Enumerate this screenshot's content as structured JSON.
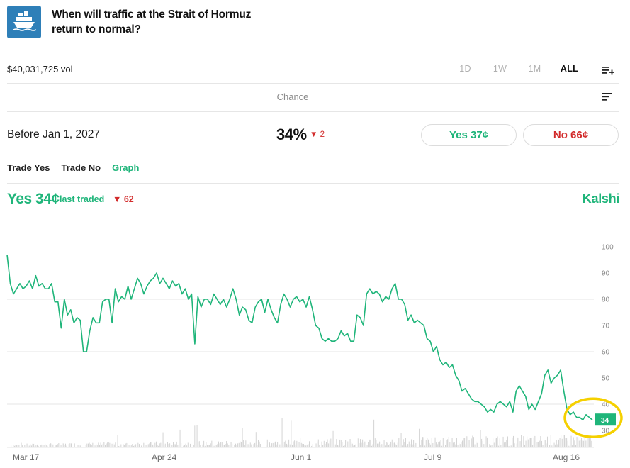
{
  "header": {
    "title": "When will traffic at the Strait of Hormuz return to normal?",
    "logo_icon": "ship-icon",
    "logo_color": "#2e7fb8"
  },
  "toolbar": {
    "volume": "$40,031,725 vol",
    "ranges": [
      "1D",
      "1W",
      "1M",
      "ALL"
    ],
    "active_range": "ALL",
    "list_add_icon": "playlist-add-icon"
  },
  "chance_label": "Chance",
  "outcome": {
    "label": "Before Jan 1, 2027",
    "chance": "34%",
    "change": "2",
    "yes_button": "Yes 37¢",
    "no_button": "No 66¢"
  },
  "tabs": [
    "Trade Yes",
    "Trade No",
    "Graph"
  ],
  "active_tab": "Graph",
  "price_header": {
    "yes_price": "Yes 34¢",
    "last_traded_label": "last traded",
    "traded_change": "62",
    "brand": "Kalshi"
  },
  "colors": {
    "accent": "#1fb57a",
    "negative": "#d22b2b",
    "highlight_ring": "#f5d000"
  },
  "chart_data": {
    "type": "line",
    "x_labels": [
      "Mar 17",
      "Apr 24",
      "Jun 1",
      "Jul 9",
      "Aug 16"
    ],
    "y_ticks": [
      100,
      90,
      80,
      70,
      60,
      50,
      40,
      30
    ],
    "ylim": [
      28,
      100
    ],
    "current_value": "34",
    "series": [
      {
        "values": [
          97,
          86,
          82,
          84,
          86,
          84,
          85,
          87,
          84,
          89,
          85,
          86,
          84,
          84,
          86,
          79,
          79,
          69,
          80,
          74,
          76,
          71,
          73,
          72,
          60,
          60,
          68,
          73,
          71,
          71,
          79,
          80,
          80,
          71,
          84,
          79,
          81,
          80,
          85,
          80,
          84,
          88,
          86,
          82,
          85,
          87,
          88,
          90,
          86,
          88,
          86,
          84,
          87,
          85,
          86,
          82,
          84,
          80,
          82,
          63,
          81,
          77,
          80,
          80,
          78,
          82,
          80,
          78,
          80,
          77,
          80,
          84,
          80,
          74,
          77,
          76,
          72,
          71,
          77,
          79,
          80,
          75,
          80,
          76,
          73,
          71,
          78,
          82,
          80,
          77,
          80,
          81,
          79,
          80,
          77,
          81,
          76,
          70,
          69,
          65,
          64,
          65,
          64,
          64,
          65,
          68,
          66,
          67,
          64,
          64,
          74,
          73,
          70,
          82,
          84,
          82,
          83,
          82,
          79,
          81,
          80,
          84,
          86,
          80,
          80,
          78,
          72,
          74,
          71,
          72,
          71,
          70,
          65,
          64,
          60,
          62,
          57,
          55,
          56,
          54,
          55,
          51,
          49,
          45,
          46,
          44,
          42,
          41,
          41,
          40,
          39,
          37,
          38,
          37,
          40,
          41,
          40,
          39,
          41,
          37,
          45,
          47,
          45,
          43,
          38,
          40,
          38,
          41,
          44,
          51,
          53,
          48,
          50,
          51,
          53,
          45,
          38,
          36,
          37,
          35,
          35,
          34,
          36,
          35,
          34
        ]
      }
    ],
    "volume_bars": "yes"
  }
}
